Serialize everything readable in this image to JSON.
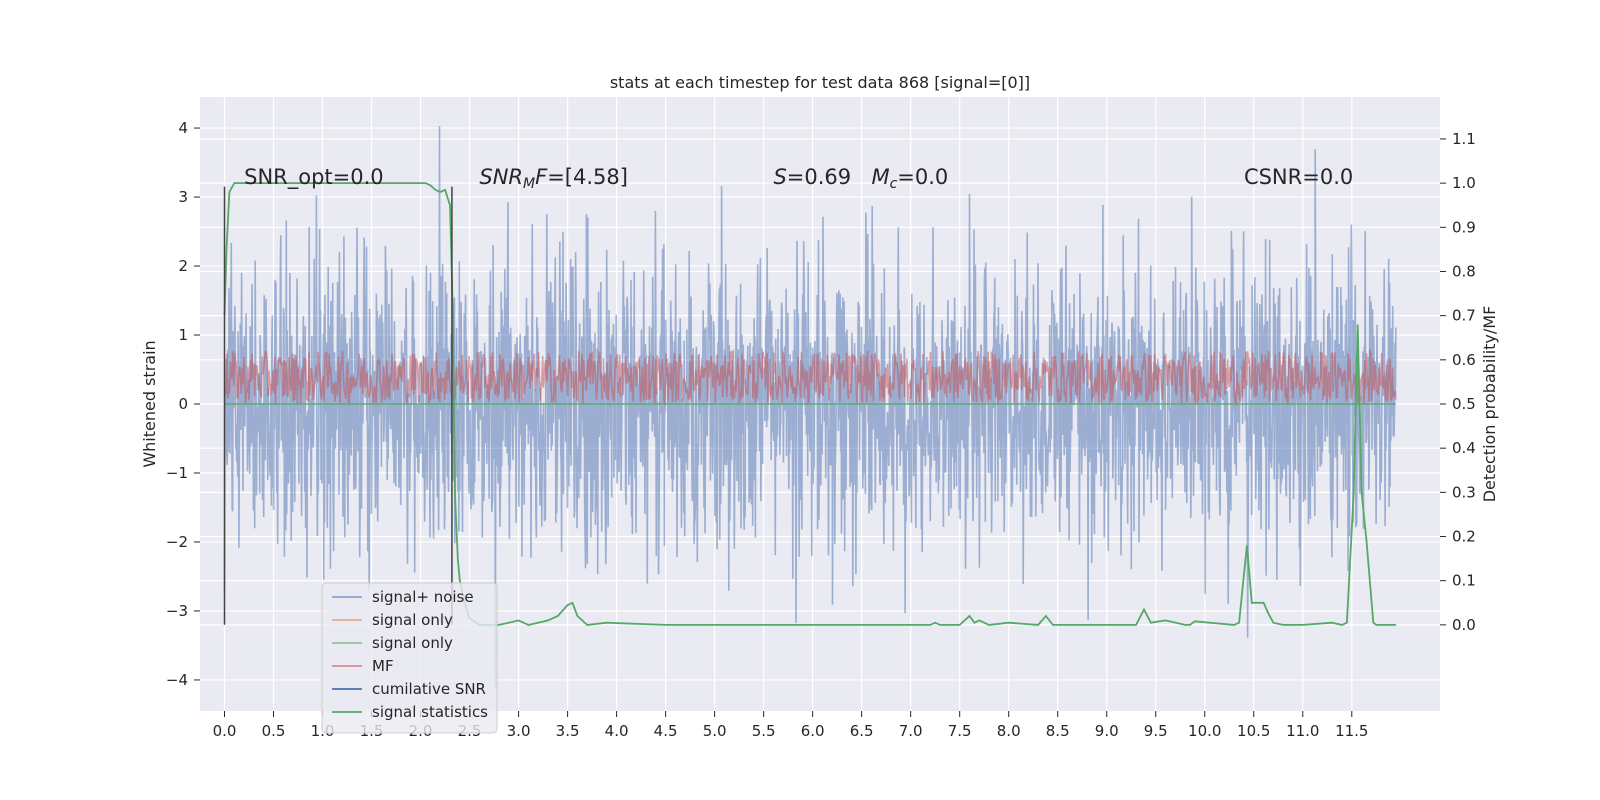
{
  "chart_data": {
    "type": "line",
    "title": "stats at each timestep for test data 868 [signal=[0]]",
    "xlabel": "",
    "ylabel": "Whitened strain",
    "ylabel_right": "Detection probability/MF",
    "xlim": [
      -0.25,
      12.4
    ],
    "ylim": [
      -4.45,
      4.45
    ],
    "ylim_right": [
      -0.195,
      1.195
    ],
    "x_ticks": [
      0.0,
      0.5,
      1.0,
      1.5,
      2.0,
      2.5,
      3.0,
      3.5,
      4.0,
      4.5,
      5.0,
      5.5,
      6.0,
      6.5,
      7.0,
      7.5,
      8.0,
      8.5,
      9.0,
      9.5,
      10.0,
      10.5,
      11.0,
      11.5
    ],
    "x_tick_labels": [
      "0.0",
      "0.5",
      "1.0",
      "1.5",
      "2.0",
      "2.5",
      "3.0",
      "3.5",
      "4.0",
      "4.5",
      "5.0",
      "5.5",
      "6.0",
      "6.5",
      "7.0",
      "7.5",
      "8.0",
      "8.5",
      "9.0",
      "9.5",
      "10.0",
      "10.5",
      "11.0",
      "11.5"
    ],
    "y_ticks": [
      -4,
      -3,
      -2,
      -1,
      0,
      1,
      2,
      3,
      4
    ],
    "y_tick_labels": [
      "−4",
      "−3",
      "−2",
      "−1",
      "0",
      "1",
      "2",
      "3",
      "4"
    ],
    "y_ticks_right": [
      0.0,
      0.1,
      0.2,
      0.3,
      0.4,
      0.5,
      0.6,
      0.7,
      0.8,
      0.9,
      1.0,
      1.1
    ],
    "y_tick_labels_right": [
      "0.0",
      "0.1",
      "0.2",
      "0.3",
      "0.4",
      "0.5",
      "0.6",
      "0.7",
      "0.8",
      "0.9",
      "1.0",
      "1.1"
    ],
    "grid": true,
    "legend_placement": "lower-left",
    "annotations": [
      {
        "text": "SNR_opt=0.0",
        "x": 0.2
      },
      {
        "text": "SNR",
        "sub": "M",
        "rest": "F=[4.58]",
        "x": 2.6,
        "italic": true
      },
      {
        "text": "S=0.69",
        "x": 5.6
      },
      {
        "text": "M",
        "sub": "c",
        "rest": "=0.0",
        "x": 6.6
      },
      {
        "text": "CSNR=0.0",
        "x": 10.4
      }
    ],
    "legend": [
      {
        "label": "signal+ noise",
        "color": "#4c72b0"
      },
      {
        "label": "signal only",
        "color": "#dd8452"
      },
      {
        "label": "signal only",
        "color": "#55a868"
      },
      {
        "label": "MF",
        "color": "#c44e52"
      },
      {
        "label": "cumilative SNR",
        "color": "#4c72b0"
      },
      {
        "label": "signal statistics",
        "color": "#55a868"
      }
    ],
    "series": [
      {
        "name": "signal+ noise",
        "color": "#4c72b0",
        "alpha": 0.5,
        "x_range": [
          0.0,
          11.95
        ],
        "envelope": "noise, approx. -4.1 to 4.0",
        "max_value": 4.03,
        "min_value": -4.1
      },
      {
        "name": "MF",
        "color": "#c44e52",
        "alpha": 0.5,
        "axis": "right",
        "x_range": [
          0.0,
          11.95
        ],
        "band": [
          0.5,
          0.62
        ]
      },
      {
        "name": "signal statistics",
        "color": "#55a868",
        "axis": "right",
        "x": [
          0.0,
          0.02,
          0.05,
          0.1,
          0.15,
          0.3,
          0.6,
          1.0,
          1.5,
          1.8,
          2.0,
          2.05,
          2.1,
          2.15,
          2.2,
          2.25,
          2.3,
          2.33,
          2.35,
          2.38,
          2.4,
          2.45,
          2.5,
          2.6,
          2.8,
          2.9,
          3.0,
          3.1,
          3.2,
          3.3,
          3.4,
          3.5,
          3.55,
          3.6,
          3.7,
          3.9,
          4.5,
          5.0,
          6.0,
          7.0,
          7.2,
          7.25,
          7.3,
          7.5,
          7.6,
          7.65,
          7.7,
          7.8,
          8.0,
          8.3,
          8.38,
          8.45,
          8.6,
          9.0,
          9.3,
          9.38,
          9.45,
          9.6,
          9.8,
          9.85,
          9.9,
          10.3,
          10.35,
          10.43,
          10.48,
          10.53,
          10.6,
          10.65,
          10.7,
          10.8,
          11.0,
          11.3,
          11.4,
          11.45,
          11.52,
          11.56,
          11.6,
          11.65,
          11.72,
          11.75,
          11.8,
          11.95
        ],
        "y": [
          0.7,
          0.85,
          0.98,
          1.0,
          1.0,
          1.0,
          1.0,
          1.0,
          1.0,
          1.0,
          1.0,
          1.0,
          0.995,
          0.985,
          0.98,
          0.985,
          0.95,
          0.7,
          0.3,
          0.15,
          0.1,
          0.05,
          0.015,
          0.0,
          0.0,
          0.005,
          0.01,
          0.0,
          0.005,
          0.01,
          0.02,
          0.045,
          0.05,
          0.02,
          0.0,
          0.005,
          0.0,
          0.0,
          0.0,
          0.0,
          0.0,
          0.005,
          0.0,
          0.0,
          0.02,
          0.005,
          0.01,
          0.0,
          0.005,
          0.0,
          0.02,
          0.0,
          0.0,
          0.0,
          0.0,
          0.035,
          0.005,
          0.01,
          0.0,
          0.0,
          0.008,
          0.0,
          0.005,
          0.18,
          0.05,
          0.05,
          0.05,
          0.025,
          0.005,
          0.0,
          0.0,
          0.005,
          0.0,
          0.005,
          0.3,
          0.68,
          0.3,
          0.19,
          0.005,
          0.0,
          0.0,
          0.0
        ]
      }
    ],
    "vertical_markers": [
      {
        "x": 0.0,
        "y_range": [
          -3.2,
          3.15
        ]
      },
      {
        "x": 2.32,
        "y_range": [
          -3.2,
          3.15
        ]
      }
    ]
  }
}
